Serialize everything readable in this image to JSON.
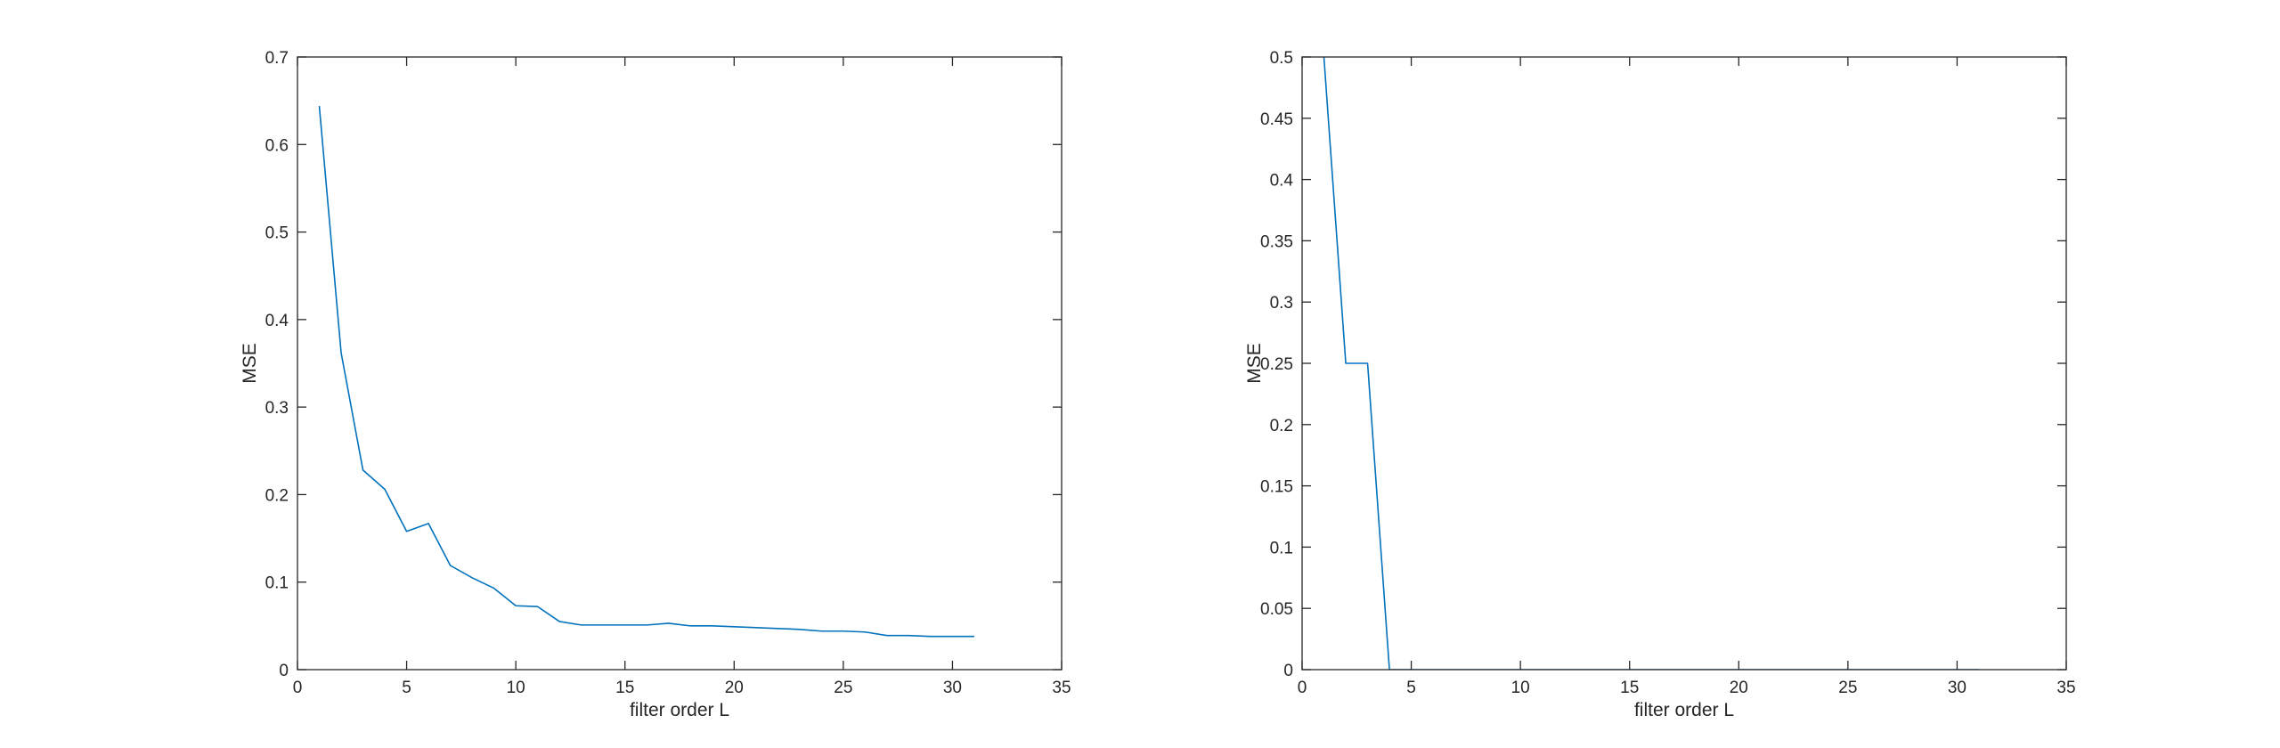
{
  "chart_data": [
    {
      "type": "line",
      "title": "",
      "xlabel": "filter order L",
      "ylabel": "MSE",
      "xlim": [
        0,
        35
      ],
      "ylim": [
        0,
        0.7
      ],
      "xticks": [
        0,
        5,
        10,
        15,
        20,
        25,
        30,
        35
      ],
      "yticks": [
        0,
        0.1,
        0.2,
        0.3,
        0.4,
        0.5,
        0.6,
        0.7
      ],
      "xtick_labels": [
        "0",
        "5",
        "10",
        "15",
        "20",
        "25",
        "30",
        "35"
      ],
      "ytick_labels": [
        "0",
        "0.1",
        "0.2",
        "0.3",
        "0.4",
        "0.5",
        "0.6",
        "0.7"
      ],
      "grid": false,
      "series": [
        {
          "color": "#0072BD",
          "x": [
            1,
            2,
            3,
            4,
            5,
            6,
            7,
            8,
            9,
            10,
            11,
            12,
            13,
            14,
            15,
            16,
            17,
            18,
            19,
            20,
            21,
            22,
            23,
            24,
            25,
            26,
            27,
            28,
            29,
            30,
            31
          ],
          "values": [
            0.644,
            0.362,
            0.228,
            0.206,
            0.158,
            0.167,
            0.119,
            0.105,
            0.093,
            0.073,
            0.072,
            0.055,
            0.051,
            0.051,
            0.051,
            0.051,
            0.053,
            0.05,
            0.05,
            0.049,
            0.048,
            0.047,
            0.046,
            0.044,
            0.044,
            0.043,
            0.039,
            0.039,
            0.038,
            0.038,
            0.038
          ]
        }
      ]
    },
    {
      "type": "line",
      "title": "",
      "xlabel": "filter order L",
      "ylabel": "MSE",
      "xlim": [
        0,
        35
      ],
      "ylim": [
        0,
        0.5
      ],
      "xticks": [
        0,
        5,
        10,
        15,
        20,
        25,
        30,
        35
      ],
      "yticks": [
        0,
        0.05,
        0.1,
        0.15,
        0.2,
        0.25,
        0.3,
        0.35,
        0.4,
        0.45,
        0.5
      ],
      "xtick_labels": [
        "0",
        "5",
        "10",
        "15",
        "20",
        "25",
        "30",
        "35"
      ],
      "ytick_labels": [
        "0",
        "0.05",
        "0.1",
        "0.15",
        "0.2",
        "0.25",
        "0.3",
        "0.35",
        "0.4",
        "0.45",
        "0.5"
      ],
      "grid": false,
      "series": [
        {
          "color": "#0072BD",
          "x": [
            1,
            2,
            3,
            4,
            5,
            6,
            7,
            8,
            9,
            10,
            11,
            12,
            13,
            14,
            15,
            16,
            17,
            18,
            19,
            20,
            21,
            22,
            23,
            24,
            25,
            26,
            27,
            28,
            29,
            30,
            31
          ],
          "values": [
            0.5,
            0.25,
            0.25,
            0,
            0,
            0,
            0,
            0,
            0,
            0,
            0,
            0,
            0,
            0,
            0,
            0,
            0,
            0,
            0,
            0,
            0,
            0,
            0,
            0,
            0,
            0,
            0,
            0,
            0,
            0,
            0
          ]
        }
      ]
    }
  ]
}
